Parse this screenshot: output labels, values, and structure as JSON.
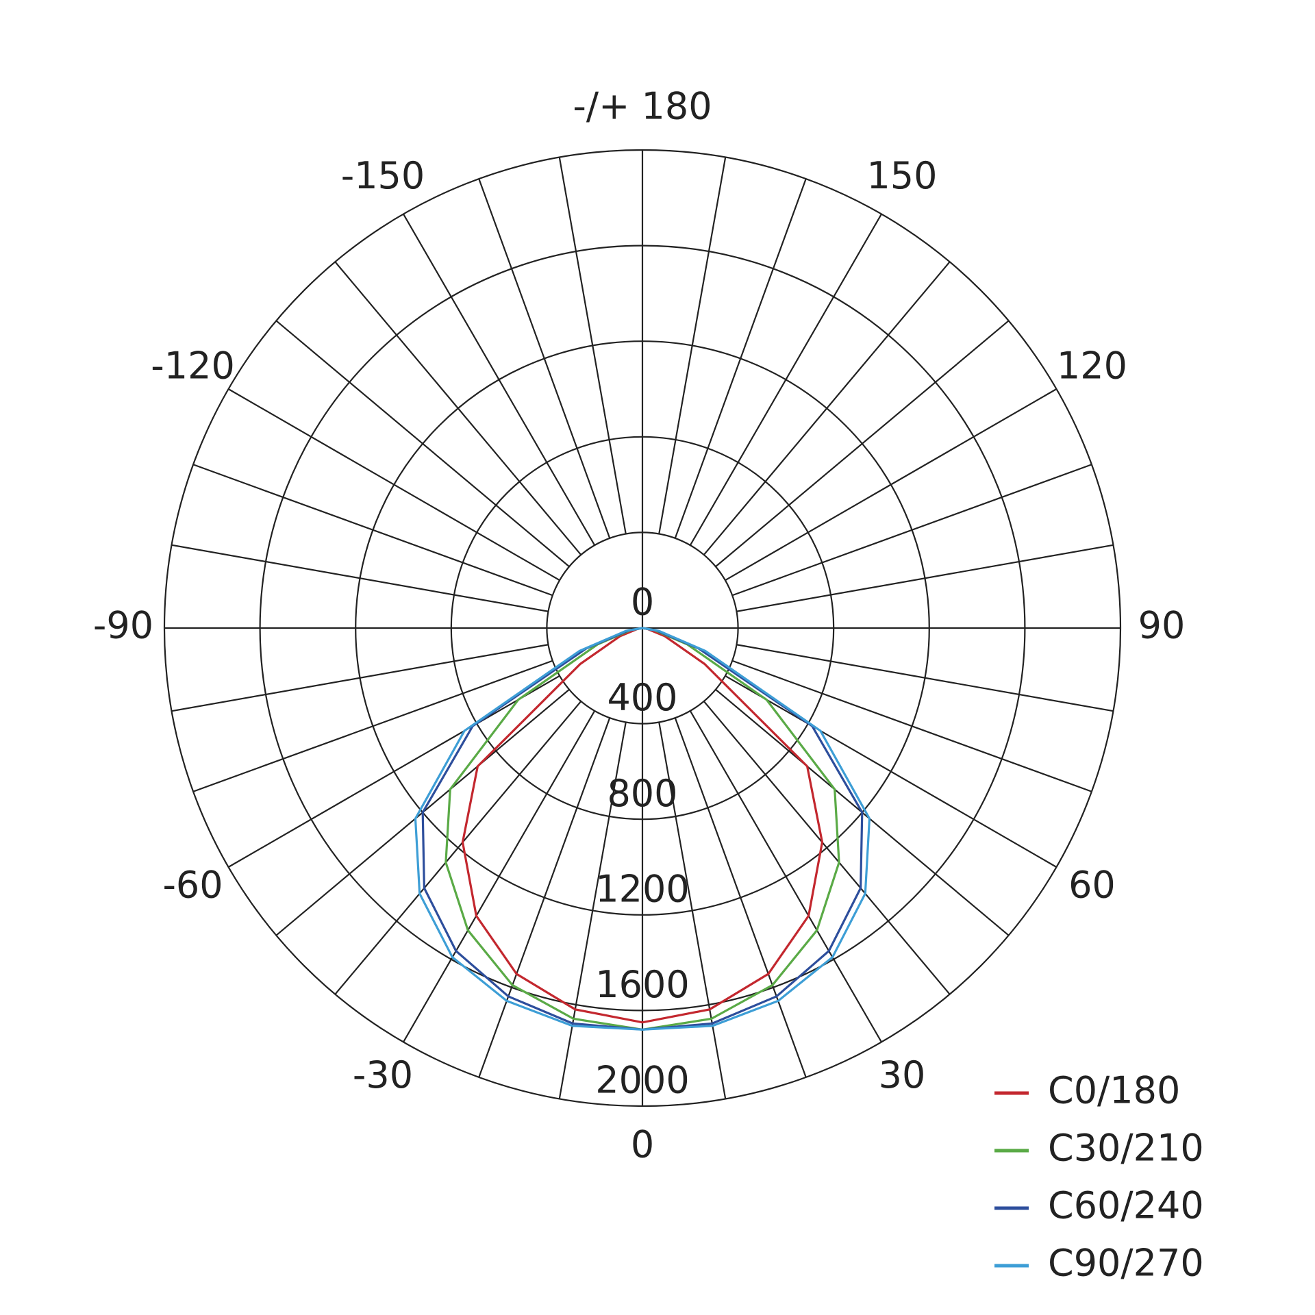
{
  "chart_data": {
    "type": "polar",
    "x": [
      -90,
      -80,
      -70,
      -60,
      -50,
      -40,
      -30,
      -20,
      -10,
      0,
      10,
      20,
      30,
      40,
      50,
      60,
      70,
      80,
      90
    ],
    "series": [
      {
        "name": "C0/180",
        "color": "#c3272e",
        "values": [
          0,
          20,
          100,
          300,
          900,
          1170,
          1390,
          1540,
          1620,
          1650,
          1620,
          1540,
          1390,
          1170,
          900,
          300,
          100,
          20,
          0
        ]
      },
      {
        "name": "C30/210",
        "color": "#5aaa46",
        "values": [
          0,
          50,
          200,
          600,
          1050,
          1280,
          1460,
          1590,
          1660,
          1680,
          1660,
          1590,
          1460,
          1280,
          1050,
          600,
          200,
          50,
          0
        ]
      },
      {
        "name": "C60/240",
        "color": "#2d4e9c",
        "values": [
          0,
          60,
          250,
          820,
          1200,
          1420,
          1560,
          1640,
          1680,
          1680,
          1680,
          1640,
          1560,
          1420,
          1200,
          820,
          250,
          60,
          0
        ]
      },
      {
        "name": "C90/270",
        "color": "#3d9ed6",
        "values": [
          0,
          70,
          280,
          860,
          1240,
          1450,
          1590,
          1660,
          1690,
          1680,
          1690,
          1660,
          1590,
          1450,
          1240,
          860,
          280,
          70,
          0
        ]
      }
    ],
    "rlim": [
      0,
      2000
    ],
    "rticks": [
      0,
      400,
      800,
      1200,
      1600,
      2000
    ],
    "angleticks": [
      -150,
      -120,
      -90,
      -60,
      -30,
      0,
      30,
      60,
      90,
      120,
      150,
      {
        "value": 180,
        "label": "-/+ 180"
      }
    ],
    "legend": "bottom-right"
  }
}
